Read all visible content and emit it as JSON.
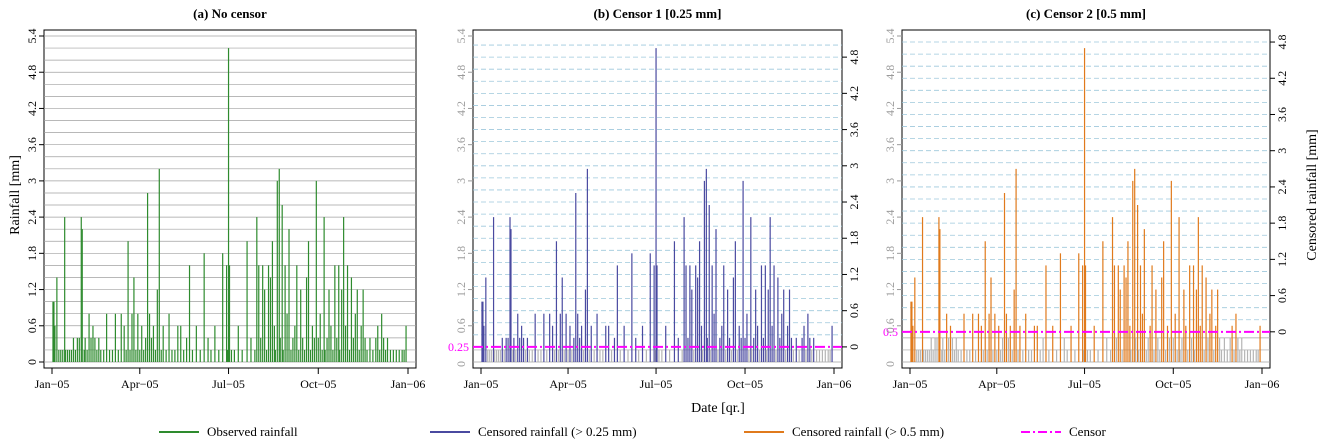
{
  "chart_data": [
    {
      "type": "bar",
      "title": "(a) No censor",
      "ylabel": "Rainfall [mm]",
      "xlabel": "Date [qr.]",
      "xlim": [
        "2005-01-01",
        "2006-01-01"
      ],
      "ylim": [
        0,
        5.4
      ],
      "yticks": [
        "0",
        "0.6",
        "1.2",
        "1.8",
        "2.4",
        "3",
        "3.6",
        "4.2",
        "4.8",
        "5.4"
      ],
      "xticks": [
        "Jan−05",
        "Apr−05",
        "Jul−05",
        "Oct−05",
        "Jan−06"
      ],
      "grid": true,
      "series": [
        {
          "name": "Observed rainfall",
          "color": "#2e8b2e",
          "points": "daily_rainfall"
        }
      ]
    },
    {
      "type": "bar",
      "title": "(b) Censor 1 [0.25 mm]",
      "censor": 0.25,
      "censor_label": "0.25",
      "ylim": [
        0,
        5.4
      ],
      "right_yticks": [
        "0",
        "0.6",
        "1.2",
        "1.8",
        "2.4",
        "3",
        "3.6",
        "4.2",
        "4.8"
      ],
      "xticks": [
        "Jan−05",
        "Apr−05",
        "Jul−05",
        "Oct−05",
        "Jan−06"
      ],
      "series": [
        {
          "name": "Censored rainfall (> 0.25 mm)",
          "color": "#4a4aa0"
        },
        {
          "name": "Censor",
          "color": "#ff00ff"
        }
      ]
    },
    {
      "type": "bar",
      "title": "(c) Censor 2 [0.5 mm]",
      "censor": 0.5,
      "censor_label": "0.5",
      "ylim": [
        0,
        5.4
      ],
      "right_ylabel": "Censored rainfall [mm]",
      "right_yticks": [
        "0",
        "0.6",
        "1.2",
        "1.8",
        "2.4",
        "3",
        "3.6",
        "4.2",
        "4.8"
      ],
      "xticks": [
        "Jan−05",
        "Apr−05",
        "Jul−05",
        "Oct−05",
        "Jan−06"
      ],
      "series": [
        {
          "name": "Censored rainfall (> 0.5 mm)",
          "color": "#e07a1c"
        },
        {
          "name": "Censor",
          "color": "#ff00ff"
        }
      ]
    }
  ],
  "daily_rainfall": [
    {
      "x": "2005-01-02",
      "y": 1.0
    },
    {
      "x": "2005-01-03",
      "y": 1.0
    },
    {
      "x": "2005-01-04",
      "y": 0.6
    },
    {
      "x": "2005-01-06",
      "y": 1.4
    },
    {
      "x": "2005-01-08",
      "y": 0.2
    },
    {
      "x": "2005-01-10",
      "y": 0.2
    },
    {
      "x": "2005-01-12",
      "y": 0.2
    },
    {
      "x": "2005-01-14",
      "y": 2.4
    },
    {
      "x": "2005-01-15",
      "y": 0.2
    },
    {
      "x": "2005-01-17",
      "y": 0.2
    },
    {
      "x": "2005-01-19",
      "y": 0.2
    },
    {
      "x": "2005-01-21",
      "y": 0.2
    },
    {
      "x": "2005-01-23",
      "y": 0.4
    },
    {
      "x": "2005-01-25",
      "y": 0.2
    },
    {
      "x": "2005-01-27",
      "y": 0.4
    },
    {
      "x": "2005-01-29",
      "y": 0.4
    },
    {
      "x": "2005-01-31",
      "y": 2.4
    },
    {
      "x": "2005-02-01",
      "y": 2.2
    },
    {
      "x": "2005-02-03",
      "y": 0.2
    },
    {
      "x": "2005-02-04",
      "y": 0.4
    },
    {
      "x": "2005-02-06",
      "y": 0.2
    },
    {
      "x": "2005-02-08",
      "y": 0.8
    },
    {
      "x": "2005-02-10",
      "y": 0.4
    },
    {
      "x": "2005-02-12",
      "y": 0.6
    },
    {
      "x": "2005-02-14",
      "y": 0.4
    },
    {
      "x": "2005-02-16",
      "y": 0.2
    },
    {
      "x": "2005-02-18",
      "y": 0.4
    },
    {
      "x": "2005-02-20",
      "y": 0.2
    },
    {
      "x": "2005-02-23",
      "y": 0.2
    },
    {
      "x": "2005-02-26",
      "y": 0.8
    },
    {
      "x": "2005-03-01",
      "y": 0.2
    },
    {
      "x": "2005-03-04",
      "y": 0.2
    },
    {
      "x": "2005-03-07",
      "y": 0.8
    },
    {
      "x": "2005-03-10",
      "y": 0.2
    },
    {
      "x": "2005-03-13",
      "y": 0.8
    },
    {
      "x": "2005-03-16",
      "y": 0.6
    },
    {
      "x": "2005-03-18",
      "y": 0.2
    },
    {
      "x": "2005-03-20",
      "y": 2.0
    },
    {
      "x": "2005-03-22",
      "y": 0.2
    },
    {
      "x": "2005-03-24",
      "y": 0.8
    },
    {
      "x": "2005-03-26",
      "y": 1.4
    },
    {
      "x": "2005-03-28",
      "y": 0.2
    },
    {
      "x": "2005-03-30",
      "y": 0.8
    },
    {
      "x": "2005-04-01",
      "y": 0.2
    },
    {
      "x": "2005-04-03",
      "y": 0.6
    },
    {
      "x": "2005-04-05",
      "y": 0.2
    },
    {
      "x": "2005-04-07",
      "y": 0.4
    },
    {
      "x": "2005-04-09",
      "y": 2.8
    },
    {
      "x": "2005-04-11",
      "y": 0.8
    },
    {
      "x": "2005-04-13",
      "y": 0.4
    },
    {
      "x": "2005-04-15",
      "y": 0.6
    },
    {
      "x": "2005-04-17",
      "y": 0.2
    },
    {
      "x": "2005-04-19",
      "y": 1.2
    },
    {
      "x": "2005-04-21",
      "y": 3.2
    },
    {
      "x": "2005-04-23",
      "y": 0.2
    },
    {
      "x": "2005-04-25",
      "y": 0.6
    },
    {
      "x": "2005-04-28",
      "y": 0.2
    },
    {
      "x": "2005-05-01",
      "y": 0.8
    },
    {
      "x": "2005-05-04",
      "y": 0.2
    },
    {
      "x": "2005-05-07",
      "y": 0.2
    },
    {
      "x": "2005-05-10",
      "y": 0.6
    },
    {
      "x": "2005-05-13",
      "y": 0.6
    },
    {
      "x": "2005-05-16",
      "y": 0.2
    },
    {
      "x": "2005-05-19",
      "y": 0.4
    },
    {
      "x": "2005-05-22",
      "y": 1.6
    },
    {
      "x": "2005-05-25",
      "y": 0.2
    },
    {
      "x": "2005-05-29",
      "y": 0.6
    },
    {
      "x": "2005-06-02",
      "y": 0.2
    },
    {
      "x": "2005-06-06",
      "y": 1.8
    },
    {
      "x": "2005-06-10",
      "y": 0.4
    },
    {
      "x": "2005-06-13",
      "y": 0.2
    },
    {
      "x": "2005-06-17",
      "y": 0.6
    },
    {
      "x": "2005-06-21",
      "y": 0.2
    },
    {
      "x": "2005-06-25",
      "y": 1.8
    },
    {
      "x": "2005-06-29",
      "y": 1.6
    },
    {
      "x": "2005-06-30",
      "y": 0.2
    },
    {
      "x": "2005-07-01",
      "y": 5.2
    },
    {
      "x": "2005-07-02",
      "y": 1.6
    },
    {
      "x": "2005-07-04",
      "y": 0.2
    },
    {
      "x": "2005-07-07",
      "y": 0.2
    },
    {
      "x": "2005-07-11",
      "y": 0.6
    },
    {
      "x": "2005-07-15",
      "y": 0.2
    },
    {
      "x": "2005-07-20",
      "y": 2.0
    },
    {
      "x": "2005-07-24",
      "y": 0.4
    },
    {
      "x": "2005-07-28",
      "y": 0.2
    },
    {
      "x": "2005-07-30",
      "y": 2.4
    },
    {
      "x": "2005-08-01",
      "y": 1.6
    },
    {
      "x": "2005-08-03",
      "y": 0.4
    },
    {
      "x": "2005-08-05",
      "y": 1.6
    },
    {
      "x": "2005-08-07",
      "y": 1.2
    },
    {
      "x": "2005-08-09",
      "y": 0.2
    },
    {
      "x": "2005-08-11",
      "y": 1.6
    },
    {
      "x": "2005-08-13",
      "y": 1.4
    },
    {
      "x": "2005-08-15",
      "y": 2.0
    },
    {
      "x": "2005-08-17",
      "y": 0.6
    },
    {
      "x": "2005-08-18",
      "y": 0.2
    },
    {
      "x": "2005-08-20",
      "y": 3.0
    },
    {
      "x": "2005-08-22",
      "y": 3.2
    },
    {
      "x": "2005-08-23",
      "y": 0.4
    },
    {
      "x": "2005-08-25",
      "y": 2.6
    },
    {
      "x": "2005-08-26",
      "y": 0.2
    },
    {
      "x": "2005-08-28",
      "y": 1.6
    },
    {
      "x": "2005-08-30",
      "y": 0.8
    },
    {
      "x": "2005-09-01",
      "y": 2.2
    },
    {
      "x": "2005-09-03",
      "y": 0.2
    },
    {
      "x": "2005-09-05",
      "y": 0.4
    },
    {
      "x": "2005-09-07",
      "y": 0.6
    },
    {
      "x": "2005-09-09",
      "y": 1.6
    },
    {
      "x": "2005-09-11",
      "y": 0.2
    },
    {
      "x": "2005-09-13",
      "y": 1.2
    },
    {
      "x": "2005-09-15",
      "y": 0.4
    },
    {
      "x": "2005-09-17",
      "y": 0.2
    },
    {
      "x": "2005-09-19",
      "y": 1.4
    },
    {
      "x": "2005-09-21",
      "y": 2.0
    },
    {
      "x": "2005-09-23",
      "y": 0.2
    },
    {
      "x": "2005-09-25",
      "y": 0.6
    },
    {
      "x": "2005-09-27",
      "y": 0.4
    },
    {
      "x": "2005-09-29",
      "y": 3.0
    },
    {
      "x": "2005-10-01",
      "y": 0.4
    },
    {
      "x": "2005-10-03",
      "y": 0.8
    },
    {
      "x": "2005-10-05",
      "y": 0.2
    },
    {
      "x": "2005-10-07",
      "y": 2.4
    },
    {
      "x": "2005-10-08",
      "y": 0.2
    },
    {
      "x": "2005-10-10",
      "y": 0.4
    },
    {
      "x": "2005-10-12",
      "y": 1.2
    },
    {
      "x": "2005-10-14",
      "y": 0.6
    },
    {
      "x": "2005-10-16",
      "y": 0.2
    },
    {
      "x": "2005-10-18",
      "y": 1.6
    },
    {
      "x": "2005-10-20",
      "y": 0.4
    },
    {
      "x": "2005-10-22",
      "y": 1.6
    },
    {
      "x": "2005-10-23",
      "y": 0.2
    },
    {
      "x": "2005-10-25",
      "y": 1.2
    },
    {
      "x": "2005-10-27",
      "y": 2.4
    },
    {
      "x": "2005-10-29",
      "y": 0.6
    },
    {
      "x": "2005-10-31",
      "y": 1.6
    },
    {
      "x": "2005-11-02",
      "y": 0.2
    },
    {
      "x": "2005-11-04",
      "y": 1.4
    },
    {
      "x": "2005-11-06",
      "y": 0.4
    },
    {
      "x": "2005-11-08",
      "y": 0.8
    },
    {
      "x": "2005-11-10",
      "y": 1.2
    },
    {
      "x": "2005-11-12",
      "y": 0.2
    },
    {
      "x": "2005-11-14",
      "y": 0.6
    },
    {
      "x": "2005-11-16",
      "y": 1.2
    },
    {
      "x": "2005-11-18",
      "y": 0.4
    },
    {
      "x": "2005-11-20",
      "y": 0.2
    },
    {
      "x": "2005-11-23",
      "y": 0.4
    },
    {
      "x": "2005-11-26",
      "y": 0.2
    },
    {
      "x": "2005-11-29",
      "y": 0.4
    },
    {
      "x": "2005-12-01",
      "y": 0.6
    },
    {
      "x": "2005-12-03",
      "y": 0.2
    },
    {
      "x": "2005-12-05",
      "y": 0.8
    },
    {
      "x": "2005-12-07",
      "y": 0.4
    },
    {
      "x": "2005-12-09",
      "y": 0.2
    },
    {
      "x": "2005-12-11",
      "y": 0.4
    },
    {
      "x": "2005-12-14",
      "y": 0.2
    },
    {
      "x": "2005-12-17",
      "y": 0.2
    },
    {
      "x": "2005-12-20",
      "y": 0.2
    },
    {
      "x": "2005-12-23",
      "y": 0.2
    },
    {
      "x": "2005-12-26",
      "y": 0.2
    },
    {
      "x": "2005-12-28",
      "y": 0.2
    },
    {
      "x": "2005-12-30",
      "y": 0.6
    }
  ],
  "colors": {
    "observed": "#2e8b2e",
    "censor1": "#4a4aa0",
    "censor2": "#e07a1c",
    "censor_line": "#ff00ff",
    "below_censor": "#b5b5b5",
    "grid_solid": "#a0a0a0",
    "grid_dashed": "#9ec8dc"
  },
  "legend": [
    {
      "label": "Observed rainfall",
      "color": "#2e8b2e",
      "style": "solid"
    },
    {
      "label": "Censored rainfall (> 0.25 mm)",
      "color": "#4a4aa0",
      "style": "solid"
    },
    {
      "label": "Censored rainfall (> 0.5 mm)",
      "color": "#e07a1c",
      "style": "solid"
    },
    {
      "label": "Censor",
      "color": "#ff00ff",
      "style": "dashdot"
    }
  ]
}
